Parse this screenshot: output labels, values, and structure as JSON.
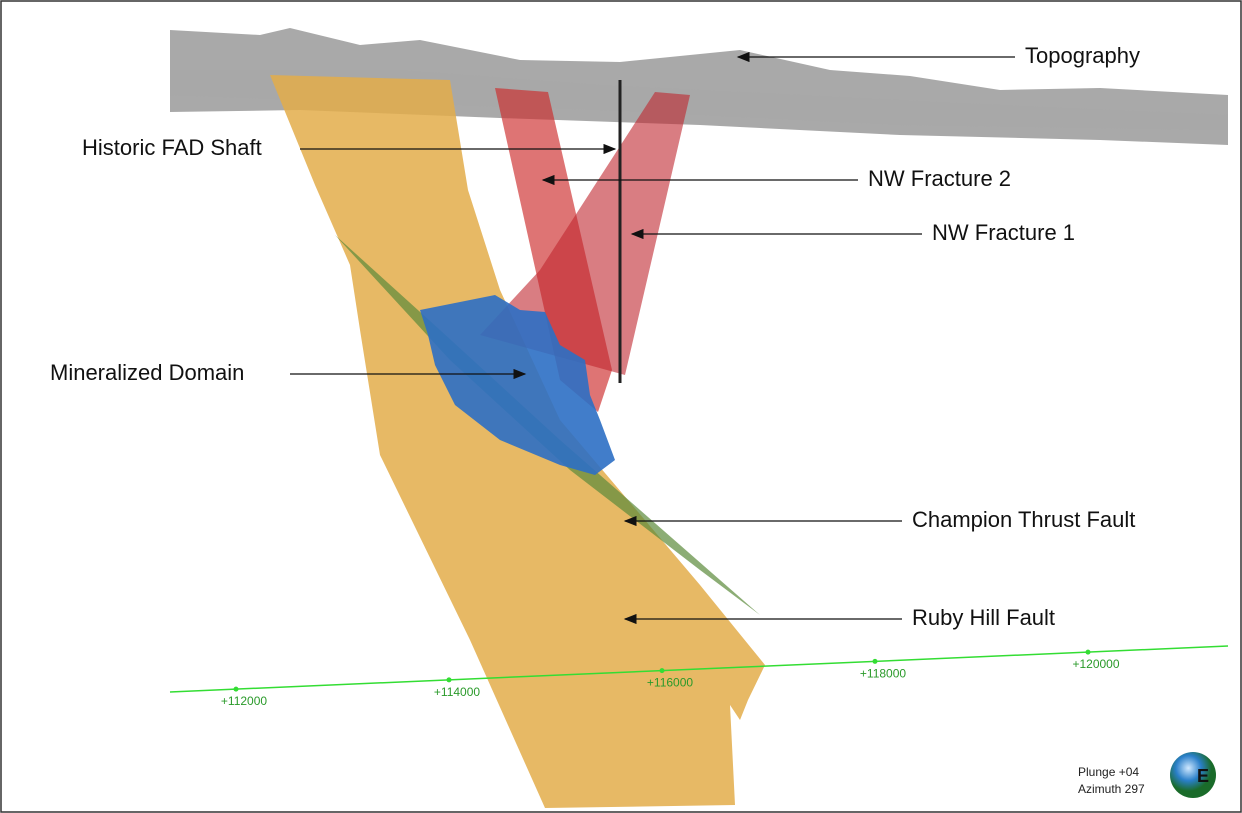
{
  "labels": [
    "Topography",
    "Historic FAD Shaft",
    "NW Fracture 2",
    "NW Fracture 1",
    "Mineralized Domain",
    "Champion Thrust Fault",
    "Ruby Hill Fault"
  ],
  "section_line": {
    "ticks": [
      "+112000",
      "+114000",
      "+116000",
      "+118000",
      "+120000"
    ]
  },
  "view": {
    "plunge": "Plunge +04",
    "azimuth": "Azimuth 297",
    "compass": "E"
  }
}
